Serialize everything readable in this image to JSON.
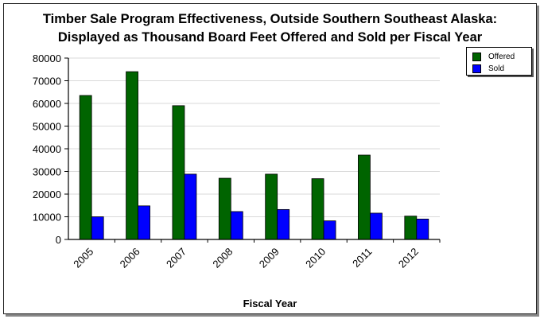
{
  "chart_data": {
    "type": "bar",
    "title": "Timber Sale Program Effectiveness, Outside Southern Southeast Alaska:",
    "subtitle": "Displayed as Thousand Board Feet Offered and Sold per Fiscal Year",
    "xlabel": "Fiscal Year",
    "ylabel": "",
    "ylim": [
      0,
      80000
    ],
    "yticks": [
      0,
      10000,
      20000,
      30000,
      40000,
      50000,
      60000,
      70000,
      80000
    ],
    "grid": true,
    "legend_position": "top-right",
    "categories": [
      "2005",
      "2006",
      "2007",
      "2008",
      "2009",
      "2010",
      "2011",
      "2012"
    ],
    "series": [
      {
        "name": "Offered",
        "color": "#006400",
        "values": [
          63500,
          74000,
          59000,
          27000,
          28800,
          26800,
          37200,
          10300
        ]
      },
      {
        "name": "Sold",
        "color": "#0000ff",
        "values": [
          10000,
          14800,
          28800,
          12300,
          13200,
          8200,
          11600,
          9000
        ]
      }
    ]
  }
}
